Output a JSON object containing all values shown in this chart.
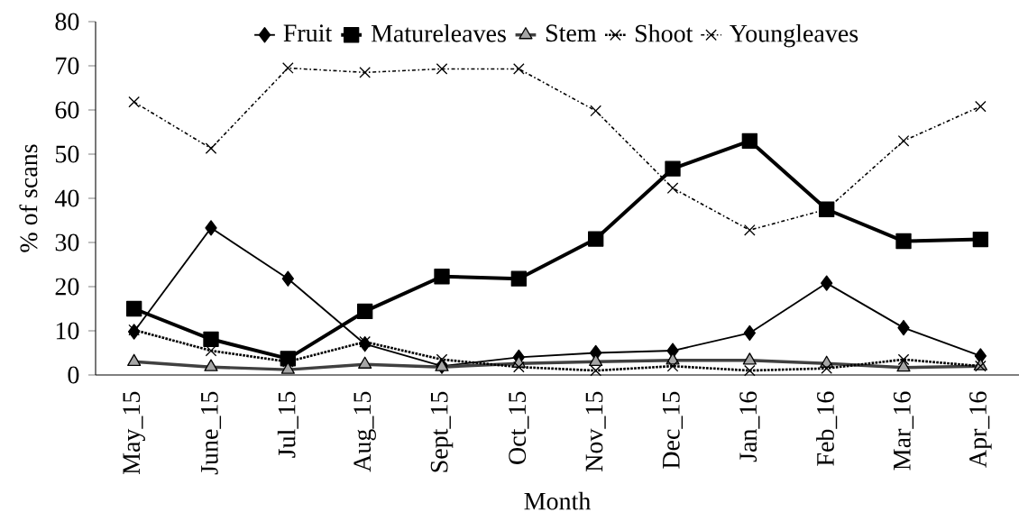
{
  "chart_data": {
    "type": "line",
    "xlabel": "Month",
    "ylabel": "% of scans",
    "categories": [
      "May_15",
      "June_15",
      "Jul_15",
      "Aug_15",
      "Sept_15",
      "Oct_15",
      "Nov_15",
      "Dec_15",
      "Jan_16",
      "Feb_16",
      "Mar_16",
      "Apr_16"
    ],
    "series": [
      {
        "name": "Fruit",
        "color": "#000000",
        "marker": "diamond",
        "line_style": "solid",
        "values": [
          9.8,
          33.3,
          21.8,
          7.0,
          2.0,
          4.0,
          5.0,
          5.5,
          9.5,
          20.8,
          10.7,
          4.3
        ]
      },
      {
        "name": "Matureleaves",
        "color": "#000000",
        "marker": "square",
        "line_style": "solid",
        "values": [
          15.0,
          8.1,
          3.7,
          14.4,
          22.3,
          21.8,
          30.8,
          46.7,
          53.0,
          37.5,
          30.3,
          30.7
        ]
      },
      {
        "name": "Stem",
        "color": "#404040",
        "marker": "triangle",
        "line_style": "solid",
        "values": [
          3.0,
          1.8,
          1.2,
          2.4,
          1.8,
          2.6,
          3.0,
          3.3,
          3.3,
          2.6,
          1.7,
          2.0
        ]
      },
      {
        "name": "Shoot",
        "color": "#000000",
        "marker": "cross",
        "line_style": "dotted",
        "values": [
          10.2,
          5.5,
          3.0,
          7.5,
          3.5,
          1.8,
          1.0,
          2.0,
          1.0,
          1.5,
          3.5,
          2.0
        ]
      },
      {
        "name": "Youngleaves",
        "color": "#000000",
        "marker": "cross",
        "line_style": "dashed",
        "values": [
          61.8,
          51.3,
          69.5,
          68.5,
          69.3,
          69.3,
          59.8,
          42.3,
          32.8,
          37.5,
          53.0,
          60.8
        ]
      }
    ],
    "ylim": [
      0,
      80
    ],
    "yticks": [
      0,
      10,
      20,
      30,
      40,
      50,
      60,
      70,
      80
    ],
    "grid": false,
    "legend": "top"
  }
}
